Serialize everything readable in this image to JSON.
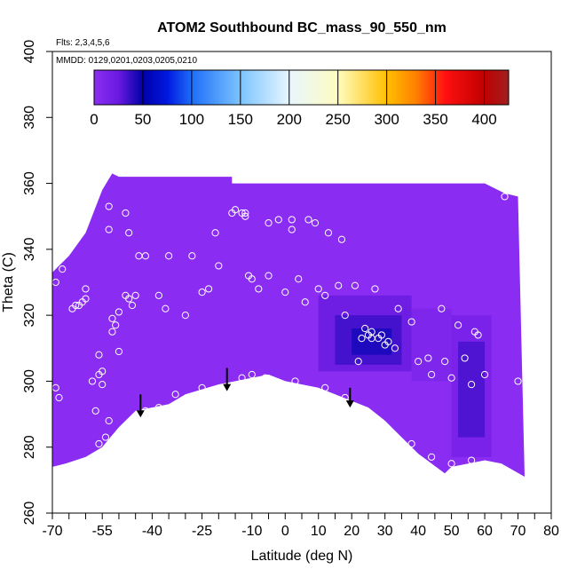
{
  "chart_data": {
    "type": "heatmap",
    "title": "ATOM2 Southbound BC_mass_90_550_nm",
    "subtitle_flights": "Flts: 2,3,4,5,6",
    "subtitle_dates": "MMDD: 0129,0201,0203,0205,0210",
    "xlabel": "Latitude (deg N)",
    "ylabel": "Theta (C)",
    "xlim": [
      -70,
      80
    ],
    "ylim": [
      260,
      400
    ],
    "x_ticks": [
      -70,
      -55,
      -40,
      -25,
      -10,
      0,
      10,
      20,
      30,
      40,
      50,
      60,
      70,
      80
    ],
    "x_tick_labels": [
      "-70",
      "-55",
      "-40",
      "-25",
      "-10",
      "0",
      "10",
      "20",
      "30",
      "40",
      "50",
      "60",
      "70",
      "80"
    ],
    "x_minor_ticks": [
      -65,
      -60,
      -50,
      -45,
      -35,
      -30,
      -20,
      -15,
      -5,
      5,
      15,
      25,
      35,
      45,
      55,
      65,
      75
    ],
    "y_ticks": [
      260,
      280,
      300,
      320,
      340,
      360,
      380,
      400
    ],
    "y_tick_labels": [
      "260",
      "280",
      "300",
      "320",
      "340",
      "360",
      "380",
      "400"
    ],
    "colorbar": {
      "min": 0,
      "max": 425,
      "ticks": [
        0,
        50,
        100,
        150,
        200,
        250,
        300,
        350,
        400
      ],
      "tick_labels": [
        "0",
        "50",
        "100",
        "150",
        "200",
        "250",
        "300",
        "350",
        "400"
      ],
      "stops": [
        {
          "value": 0,
          "color": "#8b2ff2"
        },
        {
          "value": 25,
          "color": "#6a19e0"
        },
        {
          "value": 50,
          "color": "#0000a8"
        },
        {
          "value": 75,
          "color": "#0018e0"
        },
        {
          "value": 100,
          "color": "#1e6ef8"
        },
        {
          "value": 150,
          "color": "#7cc4ff"
        },
        {
          "value": 200,
          "color": "#e8f6ff"
        },
        {
          "value": 250,
          "color": "#fffcc0"
        },
        {
          "value": 300,
          "color": "#ffc000"
        },
        {
          "value": 330,
          "color": "#ff8000"
        },
        {
          "value": 360,
          "color": "#ff1010"
        },
        {
          "value": 400,
          "color": "#c00000"
        },
        {
          "value": 425,
          "color": "#a02020"
        }
      ]
    },
    "field": {
      "background_color": "#8a2cf1",
      "upper_boundary": [
        [
          -70,
          333
        ],
        [
          -65,
          338
        ],
        [
          -60,
          345
        ],
        [
          -55,
          358
        ],
        [
          -52,
          363
        ],
        [
          -50,
          362
        ],
        [
          -45,
          362
        ],
        [
          -35,
          362
        ],
        [
          -25,
          362
        ],
        [
          -16,
          362
        ],
        [
          -16,
          360
        ],
        [
          -10,
          360
        ],
        [
          0,
          360
        ],
        [
          10,
          360
        ],
        [
          20,
          360
        ],
        [
          30,
          360
        ],
        [
          40,
          360
        ],
        [
          50,
          360
        ],
        [
          60,
          360
        ],
        [
          66,
          357
        ],
        [
          70,
          356
        ]
      ],
      "lower_boundary": [
        [
          72,
          271
        ],
        [
          65,
          275
        ],
        [
          60,
          276
        ],
        [
          50,
          274
        ],
        [
          48,
          272
        ],
        [
          40,
          278
        ],
        [
          35,
          283
        ],
        [
          30,
          288
        ],
        [
          25,
          292
        ],
        [
          20,
          294
        ],
        [
          15,
          296
        ],
        [
          10,
          298
        ],
        [
          5,
          299
        ],
        [
          0,
          300
        ],
        [
          -5,
          302
        ],
        [
          -10,
          301
        ],
        [
          -20,
          299
        ],
        [
          -30,
          296
        ],
        [
          -35,
          293
        ],
        [
          -45,
          291
        ],
        [
          -50,
          286
        ],
        [
          -55,
          280
        ],
        [
          -60,
          277
        ],
        [
          -66,
          275
        ],
        [
          -70,
          274
        ]
      ],
      "high_patches": [
        {
          "x": [
            10,
            38
          ],
          "y": [
            303,
            326
          ],
          "value": 30
        },
        {
          "x": [
            15,
            35
          ],
          "y": [
            305,
            320
          ],
          "value": 42
        },
        {
          "x": [
            20,
            32
          ],
          "y": [
            308,
            316
          ],
          "value": 55
        },
        {
          "x": [
            50,
            62
          ],
          "y": [
            277,
            320
          ],
          "value": 22
        },
        {
          "x": [
            52,
            60
          ],
          "y": [
            283,
            312
          ],
          "value": 40
        },
        {
          "x": [
            38,
            50
          ],
          "y": [
            300,
            322
          ],
          "value": 15
        }
      ]
    },
    "observations": [
      [
        -69,
        330
      ],
      [
        -68,
        337
      ],
      [
        -67,
        334
      ],
      [
        -69,
        298
      ],
      [
        -68,
        295
      ],
      [
        -64,
        322
      ],
      [
        -62,
        323
      ],
      [
        -60,
        325
      ],
      [
        -56,
        302
      ],
      [
        -56,
        308
      ],
      [
        -55,
        303
      ],
      [
        -57,
        291
      ],
      [
        -56,
        281
      ],
      [
        -54,
        283
      ],
      [
        -53,
        288
      ],
      [
        -52,
        315
      ],
      [
        -51,
        317
      ],
      [
        -52,
        319
      ],
      [
        -50,
        321
      ],
      [
        -48,
        326
      ],
      [
        -47,
        325
      ],
      [
        -46,
        323
      ],
      [
        -53,
        346
      ],
      [
        -53,
        353
      ],
      [
        -48,
        351
      ],
      [
        -47,
        345
      ],
      [
        -44,
        338
      ],
      [
        -42,
        338
      ],
      [
        -38,
        326
      ],
      [
        -36,
        322
      ],
      [
        -35,
        338
      ],
      [
        -30,
        320
      ],
      [
        -28,
        338
      ],
      [
        -25,
        327
      ],
      [
        -23,
        328
      ],
      [
        -20,
        335
      ],
      [
        -21,
        345
      ],
      [
        -16,
        351
      ],
      [
        -15,
        352
      ],
      [
        -13,
        351
      ],
      [
        -12,
        351
      ],
      [
        -12,
        350
      ],
      [
        -11,
        332
      ],
      [
        -10,
        331
      ],
      [
        -8,
        328
      ],
      [
        -5,
        348
      ],
      [
        -5,
        332
      ],
      [
        -2,
        349
      ],
      [
        0,
        327
      ],
      [
        2,
        349
      ],
      [
        2,
        346
      ],
      [
        4,
        331
      ],
      [
        6,
        324
      ],
      [
        7,
        349
      ],
      [
        9,
        348
      ],
      [
        10,
        328
      ],
      [
        12,
        326
      ],
      [
        13,
        345
      ],
      [
        16,
        329
      ],
      [
        17,
        343
      ],
      [
        18,
        320
      ],
      [
        21,
        329
      ],
      [
        24,
        316
      ],
      [
        25,
        314
      ],
      [
        26,
        315
      ],
      [
        26,
        313
      ],
      [
        28,
        313
      ],
      [
        29,
        314
      ],
      [
        22,
        306
      ],
      [
        23,
        313
      ],
      [
        27,
        328
      ],
      [
        30,
        311
      ],
      [
        31,
        312
      ],
      [
        33,
        310
      ],
      [
        34,
        322
      ],
      [
        38,
        318
      ],
      [
        40,
        306
      ],
      [
        43,
        307
      ],
      [
        44,
        302
      ],
      [
        47,
        322
      ],
      [
        48,
        306
      ],
      [
        50,
        301
      ],
      [
        52,
        317
      ],
      [
        54,
        307
      ],
      [
        56,
        299
      ],
      [
        57,
        315
      ],
      [
        58,
        314
      ],
      [
        60,
        302
      ],
      [
        66,
        356
      ],
      [
        70,
        300
      ],
      [
        -42,
        291
      ],
      [
        -38,
        292
      ],
      [
        -33,
        296
      ],
      [
        -25,
        298
      ],
      [
        -18,
        298
      ],
      [
        -13,
        301
      ],
      [
        -10,
        302
      ],
      [
        -6,
        301
      ],
      [
        3,
        300
      ],
      [
        12,
        298
      ],
      [
        18,
        295
      ],
      [
        22,
        291
      ],
      [
        25,
        289
      ],
      [
        30,
        286
      ],
      [
        38,
        281
      ],
      [
        44,
        277
      ],
      [
        50,
        275
      ],
      [
        56,
        276
      ],
      [
        -63,
        323
      ],
      [
        -61,
        324
      ],
      [
        -50,
        309
      ],
      [
        -45,
        326
      ],
      [
        -60,
        328
      ],
      [
        -55,
        299
      ],
      [
        -58,
        300
      ]
    ],
    "arrows": [
      {
        "x": -43.5,
        "y_top": 296,
        "y_tip": 289
      },
      {
        "x": -17.5,
        "y_top": 304,
        "y_tip": 297
      },
      {
        "x": 19.5,
        "y_top": 298,
        "y_tip": 292
      }
    ]
  }
}
